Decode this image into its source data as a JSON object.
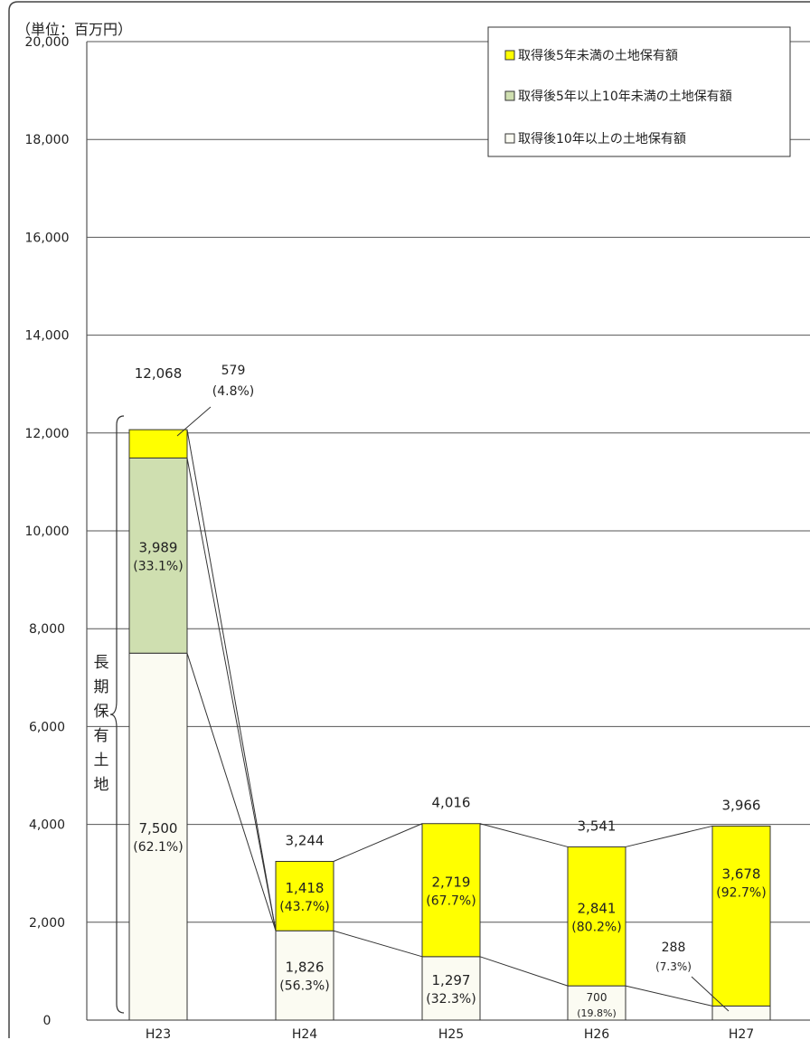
{
  "unit_label": "（単位：百万円）",
  "long_term_label": [
    "長",
    "期",
    "保",
    "有",
    "土",
    "地"
  ],
  "legend": [
    {
      "label": "取得後5年未満の土地保有額",
      "color": "#ffff00"
    },
    {
      "label": "取得後5年以上10年未満の土地保有額",
      "color": "#cfdfb0"
    },
    {
      "label": "取得後10年以上の土地保有額",
      "color": "#fbfbf2"
    }
  ],
  "chart_data": {
    "type": "bar",
    "stacked": true,
    "categories": [
      "H23",
      "H24",
      "H25",
      "H26",
      "H27"
    ],
    "yticks": [
      "0",
      "2,000",
      "4,000",
      "6,000",
      "8,000",
      "10,000",
      "12,000",
      "14,000",
      "16,000",
      "18,000",
      "20,000"
    ],
    "ylim": [
      0,
      20000
    ],
    "grid": true,
    "legend_position": "top-right",
    "totals": [
      "12,068",
      "3,244",
      "4,016",
      "3,541",
      "3,966"
    ],
    "total_values": [
      12068,
      3244,
      4016,
      3541,
      3966
    ],
    "series": [
      {
        "name": "取得後10年以上の土地保有額",
        "color": "#fbfbf2",
        "values": [
          7500,
          1826,
          1297,
          700,
          288
        ],
        "labels": [
          "7,500",
          "1,826",
          "1,297",
          "700",
          "288"
        ],
        "pcts": [
          "(62.1%)",
          "(56.3%)",
          "(32.3%)",
          "(19.8%)",
          "(7.3%)"
        ]
      },
      {
        "name": "取得後5年以上10年未満の土地保有額",
        "color": "#cfdfb0",
        "values": [
          3989,
          0,
          0,
          0,
          0
        ],
        "labels": [
          "3,989",
          "",
          "",
          "",
          ""
        ],
        "pcts": [
          "(33.1%)",
          "",
          "",
          "",
          ""
        ]
      },
      {
        "name": "取得後5年未満の土地保有額",
        "color": "#ffff00",
        "values": [
          579,
          1418,
          2719,
          2841,
          3678
        ],
        "labels": [
          "579",
          "1,418",
          "2,719",
          "2,841",
          "3,678"
        ],
        "pcts": [
          "(4.8%)",
          "(43.7%)",
          "(67.7%)",
          "(80.2%)",
          "(92.7%)"
        ]
      }
    ]
  }
}
